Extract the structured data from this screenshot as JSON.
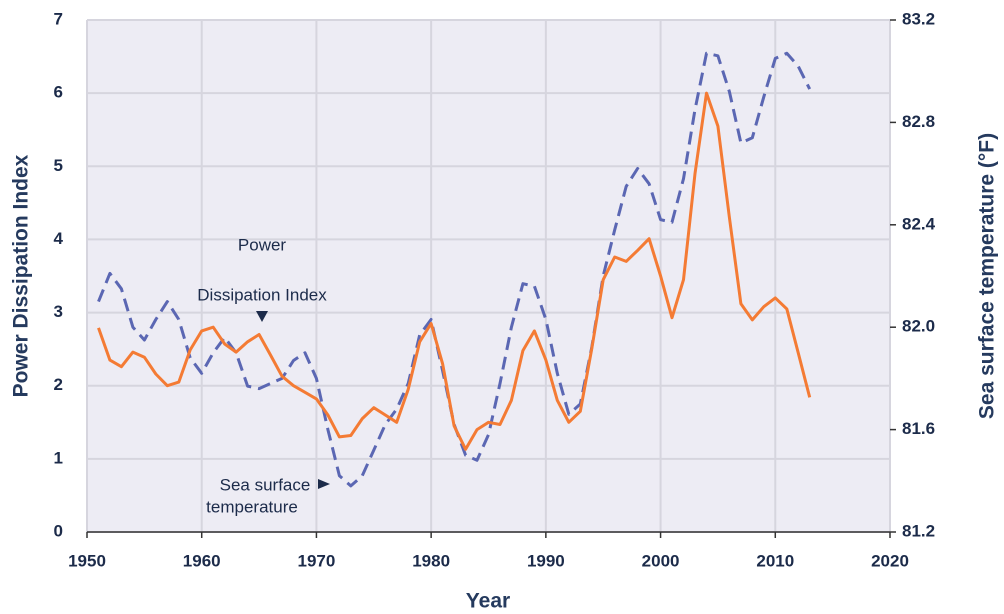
{
  "chart_data": {
    "type": "line",
    "x": [
      1951,
      1952,
      1953,
      1954,
      1955,
      1956,
      1957,
      1958,
      1959,
      1960,
      1961,
      1962,
      1963,
      1964,
      1965,
      1966,
      1967,
      1968,
      1969,
      1970,
      1971,
      1972,
      1973,
      1974,
      1975,
      1976,
      1977,
      1978,
      1979,
      1980,
      1981,
      1982,
      1983,
      1984,
      1985,
      1986,
      1987,
      1988,
      1989,
      1990,
      1991,
      1992,
      1993,
      1994,
      1995,
      1996,
      1997,
      1998,
      1999,
      2000,
      2001,
      2002,
      2003,
      2004,
      2005,
      2006,
      2007,
      2008,
      2009,
      2010,
      2011,
      2012,
      2013
    ],
    "series": [
      {
        "name": "Power Dissipation Index",
        "color": "#f47b34",
        "dash": false,
        "values": [
          2.79,
          2.35,
          2.26,
          2.46,
          2.39,
          2.16,
          2.0,
          2.05,
          2.49,
          2.75,
          2.8,
          2.57,
          2.46,
          2.6,
          2.7,
          2.42,
          2.13,
          2.0,
          1.91,
          1.82,
          1.6,
          1.3,
          1.32,
          1.55,
          1.7,
          1.6,
          1.5,
          1.95,
          2.6,
          2.85,
          2.3,
          1.45,
          1.13,
          1.4,
          1.5,
          1.47,
          1.8,
          2.48,
          2.75,
          2.35,
          1.8,
          1.5,
          1.65,
          2.5,
          3.45,
          3.76,
          3.7,
          3.85,
          4.01,
          3.5,
          2.93,
          3.45,
          4.9,
          6.0,
          5.55,
          4.3,
          3.12,
          2.9,
          3.08,
          3.2,
          3.05,
          2.45,
          1.84
        ]
      },
      {
        "name": "Sea surface temperature",
        "color": "#5b67b3",
        "dash": true,
        "axis": "y2",
        "values": [
          82.1,
          82.21,
          82.15,
          82.0,
          81.95,
          82.03,
          82.1,
          82.03,
          81.88,
          81.82,
          81.9,
          81.96,
          81.9,
          81.77,
          81.76,
          81.78,
          81.8,
          81.87,
          81.9,
          81.8,
          81.6,
          81.42,
          81.38,
          81.42,
          81.52,
          81.62,
          81.68,
          81.78,
          81.97,
          82.03,
          81.83,
          81.62,
          81.5,
          81.48,
          81.58,
          81.78,
          82.0,
          82.17,
          82.16,
          82.03,
          81.82,
          81.66,
          81.7,
          81.92,
          82.2,
          82.38,
          82.55,
          82.62,
          82.56,
          82.42,
          82.41,
          82.58,
          82.85,
          83.07,
          83.06,
          82.92,
          82.72,
          82.74,
          82.9,
          83.05,
          83.07,
          83.02,
          82.93
        ]
      }
    ],
    "xlabel": "Year",
    "ylabel": "Power Dissipation Index",
    "y2label": "Sea surface temperature (°F)",
    "xlim": [
      1950,
      2020
    ],
    "xticks": [
      1950,
      1960,
      1970,
      1980,
      1990,
      2000,
      2010,
      2020
    ],
    "ylim": [
      0,
      7
    ],
    "yticks": [
      0,
      1,
      2,
      3,
      4,
      5,
      6,
      7
    ],
    "y2lim": [
      81.2,
      83.2
    ],
    "y2ticks": [
      81.2,
      81.6,
      {
        "value": 82,
        "label": "82.0"
      },
      82.4,
      82.8,
      83.2
    ],
    "grid": true,
    "annotations": [
      {
        "lines": [
          "Power",
          "Dissipation Index"
        ]
      },
      {
        "lines": [
          "Sea surface",
          "temperature"
        ]
      }
    ]
  }
}
